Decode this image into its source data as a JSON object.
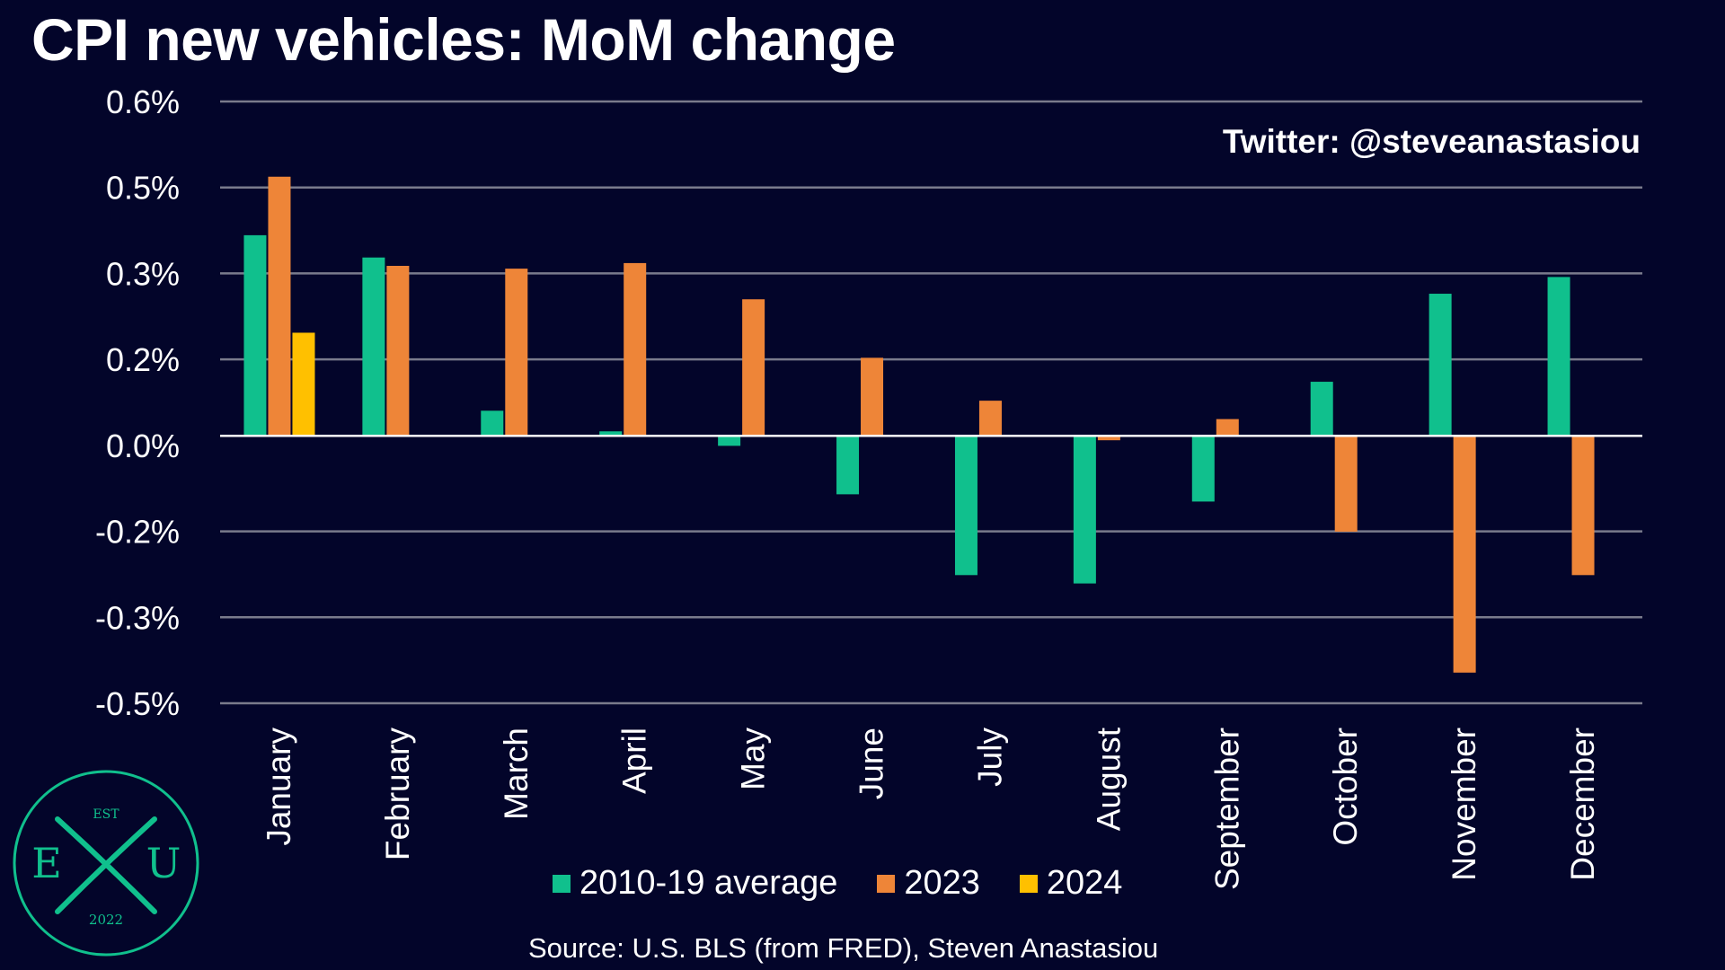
{
  "title": "CPI new vehicles: MoM change",
  "watermark": "Twitter: @steveanastasiou",
  "source": "Source: U.S. BLS (from FRED), Steven Anastasiou",
  "logo": {
    "top": "EST",
    "left": "E",
    "right": "U",
    "bottom": "2022"
  },
  "colors": {
    "background": "#03052a",
    "series_2010_19": "#10c08d",
    "series_2023": "#ee8538",
    "series_2024": "#ffc000",
    "grid": "#7a7b8c",
    "zero_line": "#ffffff"
  },
  "chart_data": {
    "type": "bar",
    "title": "CPI new vehicles: MoM change",
    "categories": [
      "January",
      "February",
      "March",
      "April",
      "May",
      "June",
      "July",
      "August",
      "September",
      "October",
      "November",
      "December"
    ],
    "y_tick_labels": [
      "0.6%",
      "0.5%",
      "0.3%",
      "0.2%",
      "0.0%",
      "-0.2%",
      "-0.3%",
      "-0.5%"
    ],
    "ylim": [
      -0.48,
      0.6
    ],
    "grid": true,
    "legend_position": "bottom",
    "series": [
      {
        "name": "2010-19 average",
        "values": [
          0.36,
          0.32,
          0.045,
          0.008,
          -0.018,
          -0.105,
          -0.25,
          -0.265,
          -0.118,
          0.097,
          0.255,
          0.285
        ]
      },
      {
        "name": "2023",
        "values": [
          0.465,
          0.305,
          0.3,
          0.31,
          0.245,
          0.14,
          0.063,
          -0.008,
          0.03,
          -0.172,
          -0.425,
          -0.25
        ]
      },
      {
        "name": "2024",
        "values": [
          0.185,
          null,
          null,
          null,
          null,
          null,
          null,
          null,
          null,
          null,
          null,
          null
        ]
      }
    ]
  }
}
